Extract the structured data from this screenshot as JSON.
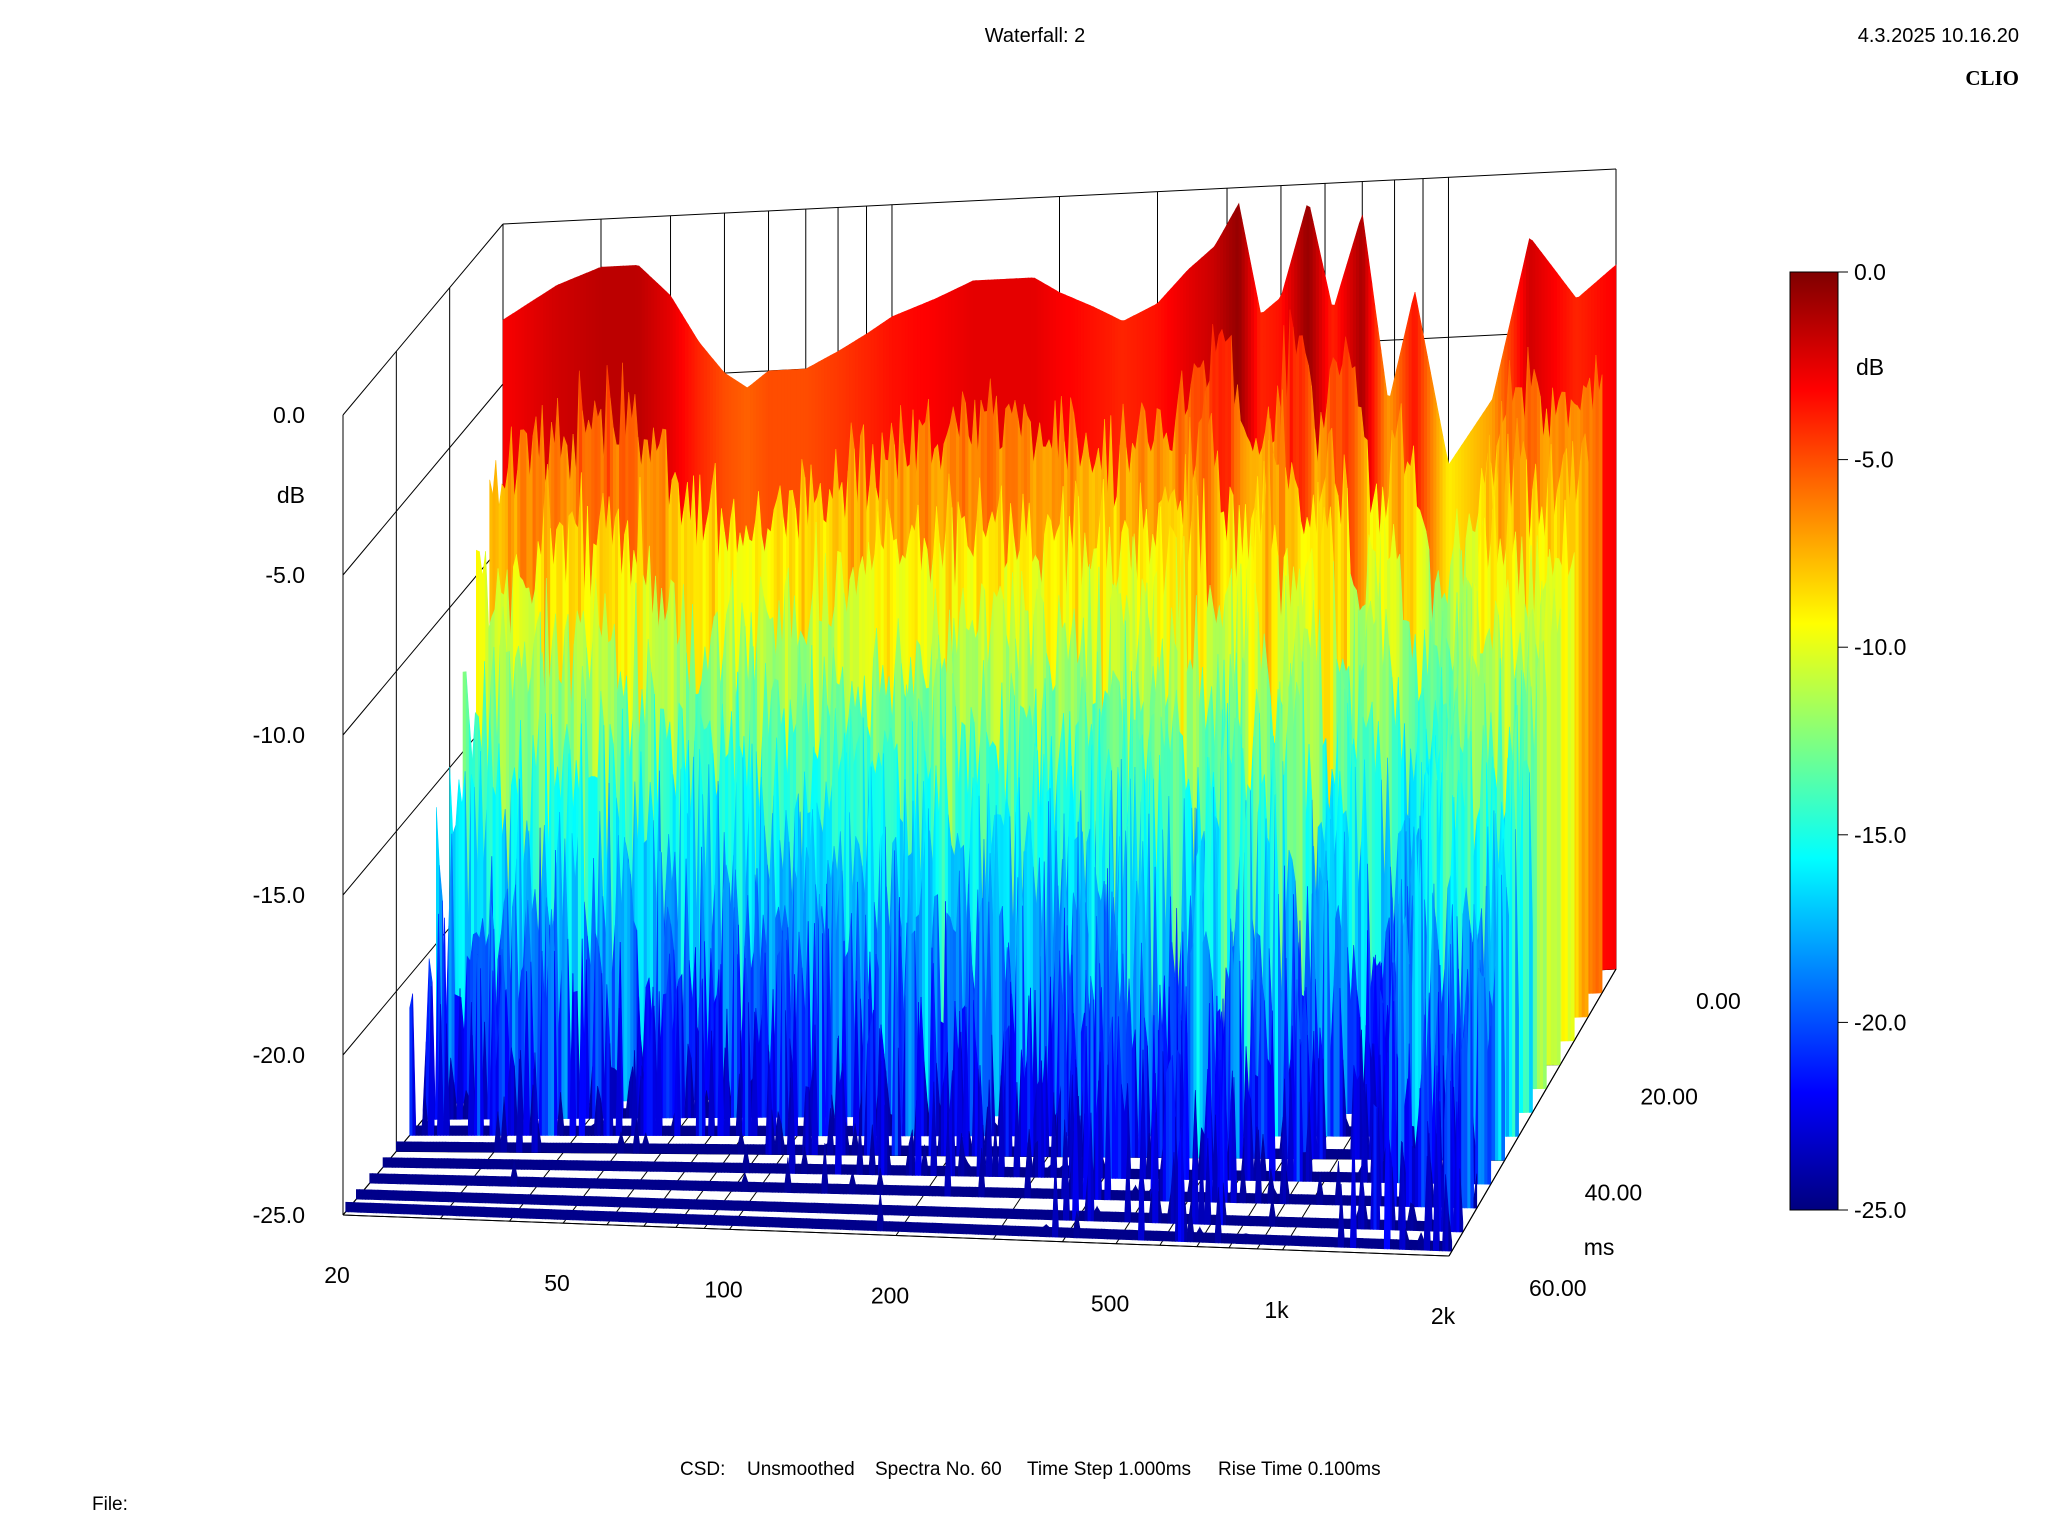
{
  "chart_data": {
    "type": "waterfall",
    "title": "Waterfall: 2",
    "timestamp": "4.3.2025 10.16.20",
    "brand": "CLIO",
    "z_axis": {
      "unit": "dB",
      "range": [
        -25.0,
        0.0
      ],
      "ticks": [
        "0.0",
        "-5.0",
        "-10.0",
        "-15.0",
        "-20.0",
        "-25.0"
      ]
    },
    "x_axis": {
      "scale": "log",
      "range": [
        20,
        2000
      ],
      "tick_values": [
        20,
        50,
        100,
        200,
        500,
        1000,
        2000
      ],
      "tick_labels": [
        "20",
        "50",
        "100",
        "200",
        "500",
        "1k",
        "2k"
      ]
    },
    "y_axis": {
      "unit": "ms",
      "range": [
        0.0,
        60.0
      ],
      "ticks": [
        "0.00",
        "20.00",
        "40.00",
        "60.00"
      ]
    },
    "colorbar": {
      "unit": "dB",
      "range": [
        -25.0,
        0.0
      ],
      "ticks": [
        "0.0",
        "-5.0",
        "-10.0",
        "-15.0",
        "-20.0",
        "-25.0"
      ],
      "stops": [
        "#7f0000",
        "#ff0000",
        "#ff8000",
        "#ffff00",
        "#80ff80",
        "#00ffff",
        "#0080ff",
        "#0000ff",
        "#00007f"
      ]
    },
    "spectra": {
      "time_ms": [
        0,
        5,
        10,
        15,
        20,
        25,
        30,
        35,
        40,
        45,
        50,
        55,
        59
      ],
      "frequency_hz": [
        20,
        25,
        30,
        35,
        40,
        45,
        50,
        55,
        60,
        70,
        80,
        90,
        100,
        120,
        140,
        160,
        180,
        200,
        230,
        260,
        300,
        340,
        380,
        420,
        460,
        500,
        560,
        620,
        700,
        780,
        870,
        1000,
        1200,
        1400,
        1700,
        2000
      ],
      "initial_level_db": [
        -3,
        -2,
        -1.5,
        -1.5,
        -2.5,
        -4,
        -5,
        -5.5,
        -5,
        -5,
        -4.5,
        -4,
        -3.5,
        -3,
        -2.5,
        -2.5,
        -2.5,
        -3,
        -3.5,
        -4,
        -3.5,
        -2.5,
        -1.8,
        -0.5,
        -4,
        -3.5,
        -0.5,
        -4,
        -1,
        -7,
        -3.5,
        -9,
        -7,
        -2,
        -4,
        -3
      ]
    },
    "footer": {
      "mode": "CSD:",
      "smoothing": "Unsmoothed",
      "spectra_no": "Spectra No. 60",
      "time_step": "Time Step 1.000ms",
      "rise_time": "Rise Time 0.100ms",
      "file_label": "File:"
    }
  }
}
